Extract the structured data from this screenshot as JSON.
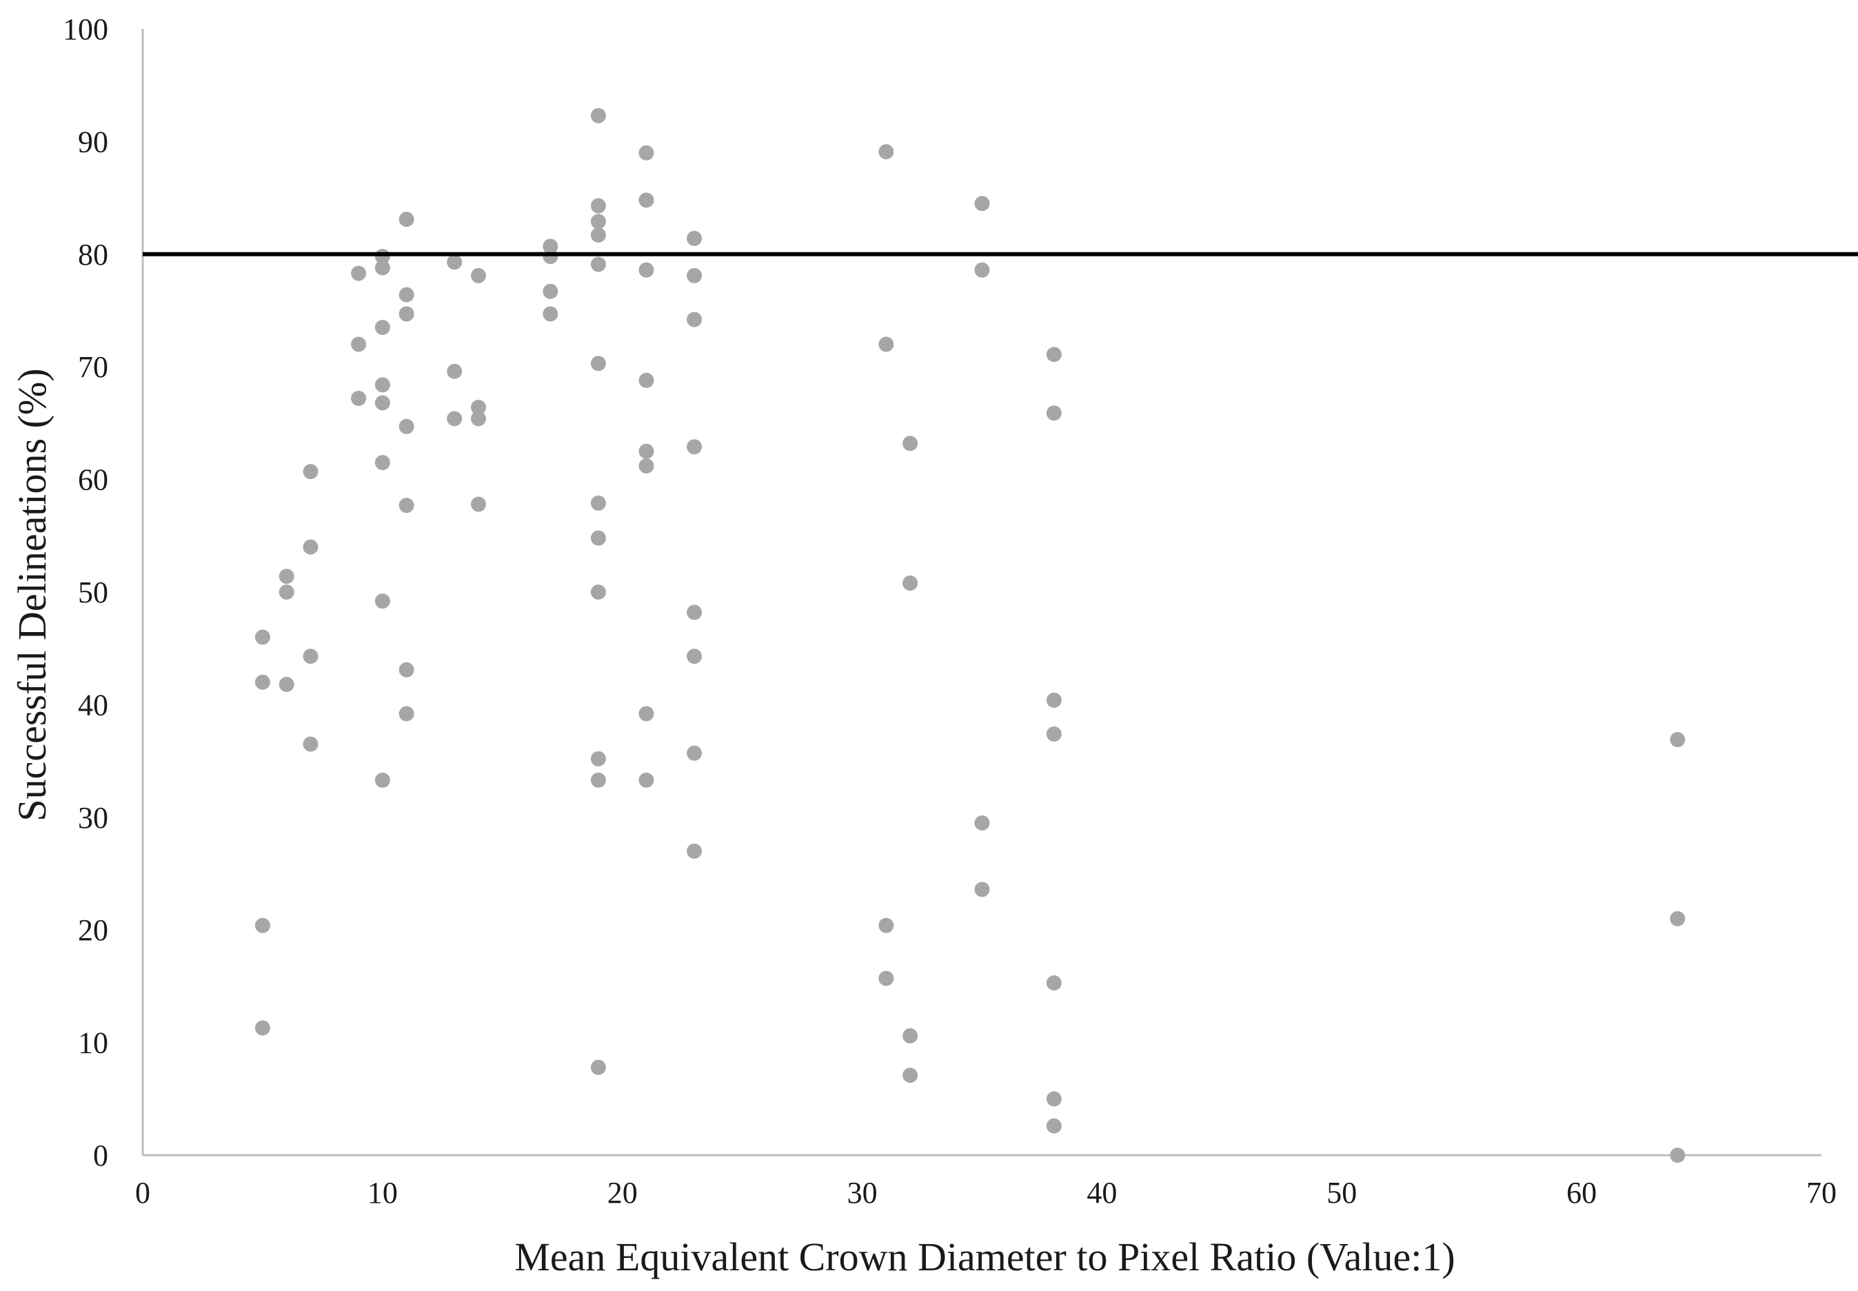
{
  "chart_data": {
    "type": "scatter",
    "title": "",
    "xlabel": "Mean Equivalent Crown  Diameter to Pixel  Ratio (Value:1)",
    "ylabel": "Successful Delineations (%)",
    "xlim": [
      0,
      70
    ],
    "ylim": [
      0,
      100
    ],
    "x_ticks": [
      "0",
      "10",
      "20",
      "30",
      "40",
      "50",
      "60",
      "70"
    ],
    "y_ticks": [
      "0",
      "10",
      "20",
      "30",
      "40",
      "50",
      "60",
      "70",
      "80",
      "90",
      "100"
    ],
    "grid": false,
    "legend": "none",
    "reference_line_y": 80,
    "colors": {
      "points": "#a6a6a6",
      "reference_line": "#000000",
      "axis": "#bdbdbd"
    },
    "points": [
      [
        5,
        46
      ],
      [
        5,
        42
      ],
      [
        5,
        20.4
      ],
      [
        5,
        11.3
      ],
      [
        6,
        51.4
      ],
      [
        6,
        50
      ],
      [
        6,
        41.8
      ],
      [
        7,
        60.7
      ],
      [
        7,
        54
      ],
      [
        7,
        44.3
      ],
      [
        7,
        36.5
      ],
      [
        9,
        78.3
      ],
      [
        9,
        72
      ],
      [
        9,
        67.2
      ],
      [
        10,
        79.8
      ],
      [
        10,
        78.8
      ],
      [
        10,
        73.5
      ],
      [
        10,
        68.4
      ],
      [
        10,
        66.8
      ],
      [
        10,
        61.5
      ],
      [
        10,
        49.2
      ],
      [
        10,
        33.3
      ],
      [
        11,
        83.1
      ],
      [
        11,
        76.4
      ],
      [
        11,
        74.7
      ],
      [
        11,
        64.7
      ],
      [
        11,
        57.7
      ],
      [
        11,
        43.1
      ],
      [
        11,
        39.2
      ],
      [
        13,
        79.3
      ],
      [
        13,
        69.6
      ],
      [
        13,
        65.4
      ],
      [
        14,
        78.1
      ],
      [
        14,
        66.4
      ],
      [
        14,
        65.4
      ],
      [
        14,
        57.8
      ],
      [
        17,
        80.7
      ],
      [
        17,
        79.8
      ],
      [
        17,
        76.7
      ],
      [
        17,
        74.7
      ],
      [
        19,
        92.3
      ],
      [
        19,
        84.3
      ],
      [
        19,
        82.9
      ],
      [
        19,
        81.7
      ],
      [
        19,
        79.1
      ],
      [
        19,
        70.3
      ],
      [
        19,
        57.9
      ],
      [
        19,
        54.8
      ],
      [
        19,
        50
      ],
      [
        19,
        35.2
      ],
      [
        19,
        33.3
      ],
      [
        19,
        7.8
      ],
      [
        21,
        89
      ],
      [
        21,
        84.8
      ],
      [
        21,
        78.6
      ],
      [
        21,
        68.8
      ],
      [
        21,
        62.5
      ],
      [
        21,
        61.2
      ],
      [
        21,
        39.2
      ],
      [
        21,
        33.3
      ],
      [
        23,
        81.4
      ],
      [
        23,
        78.1
      ],
      [
        23,
        74.2
      ],
      [
        23,
        62.9
      ],
      [
        23,
        48.2
      ],
      [
        23,
        44.3
      ],
      [
        23,
        35.7
      ],
      [
        23,
        27
      ],
      [
        31,
        89.1
      ],
      [
        31,
        72
      ],
      [
        31,
        20.4
      ],
      [
        31,
        15.7
      ],
      [
        32,
        63.2
      ],
      [
        32,
        50.8
      ],
      [
        32,
        10.6
      ],
      [
        32,
        7.1
      ],
      [
        35,
        84.5
      ],
      [
        35,
        78.6
      ],
      [
        35,
        29.5
      ],
      [
        35,
        23.6
      ],
      [
        38,
        71.1
      ],
      [
        38,
        65.9
      ],
      [
        38,
        40.4
      ],
      [
        38,
        37.4
      ],
      [
        38,
        15.3
      ],
      [
        38,
        5
      ],
      [
        38,
        2.6
      ],
      [
        64,
        36.9
      ],
      [
        64,
        21
      ],
      [
        64,
        0
      ]
    ]
  }
}
